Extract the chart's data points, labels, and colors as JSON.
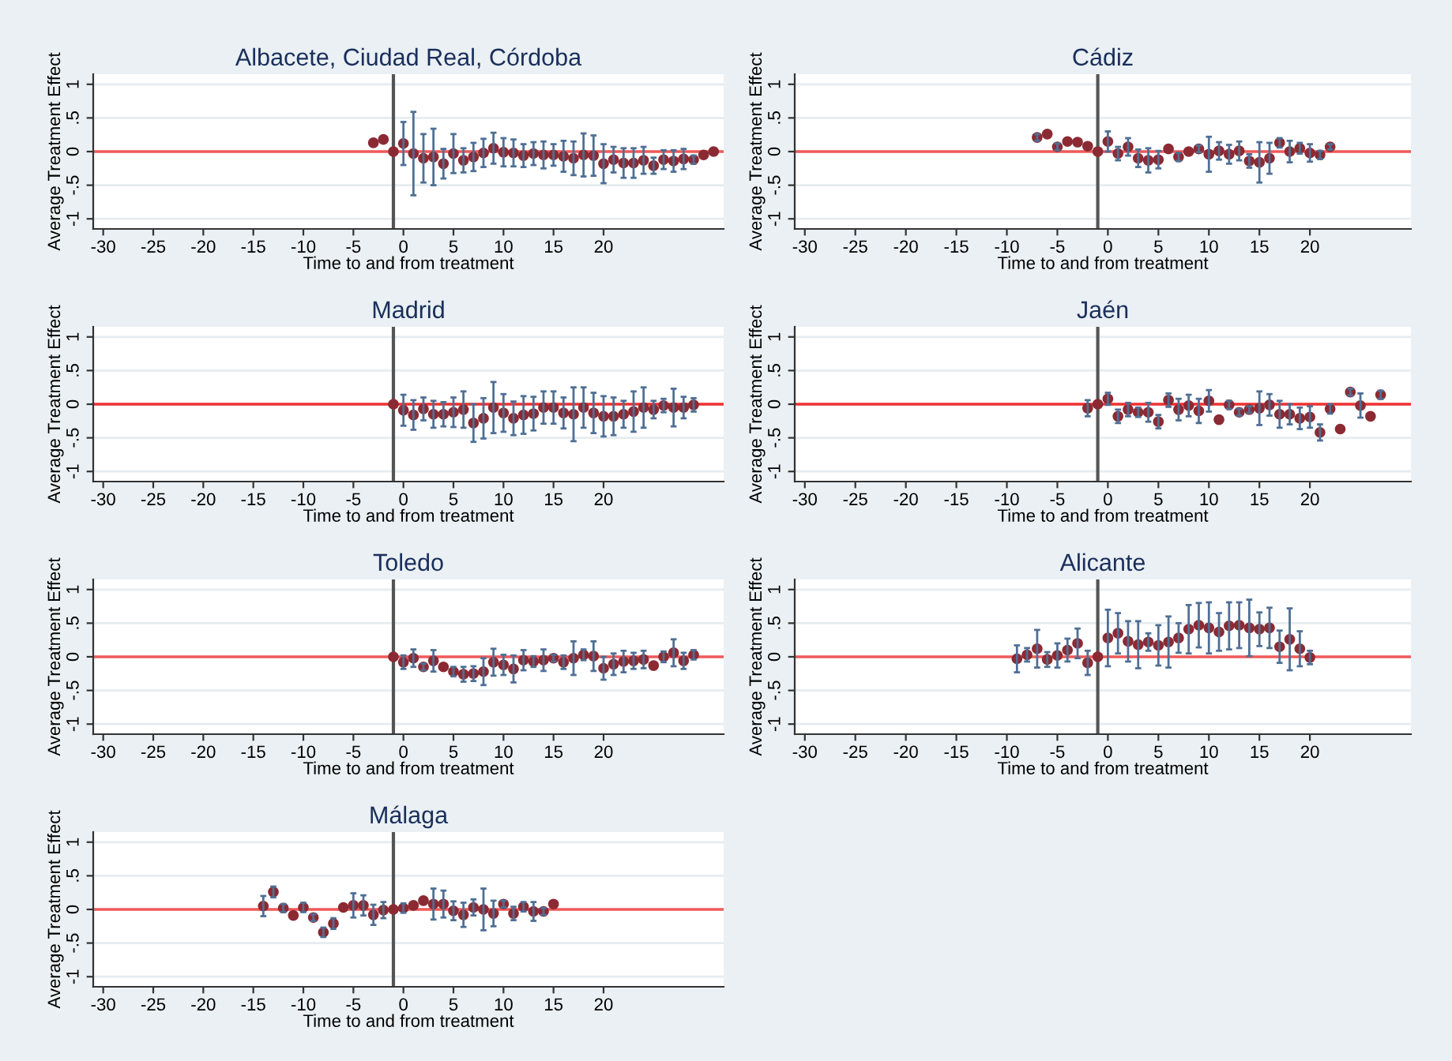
{
  "chart_data": [
    {
      "type": "scatter",
      "title": "Albacete, Ciudad Real, Córdoba",
      "xlabel": "Time to and from treatment",
      "ylabel": "Average Treatment Effect",
      "marker": "circle",
      "grid": "y",
      "color": "#8b2a33",
      "x": [
        -3,
        -2,
        -1,
        0,
        1,
        2,
        3,
        4,
        5,
        6,
        7,
        8,
        9,
        10,
        11,
        12,
        13,
        14,
        15,
        16,
        17,
        18,
        19,
        20,
        21,
        22,
        23,
        24,
        25,
        26,
        27,
        28,
        29,
        30,
        31
      ],
      "values": [
        0.13,
        0.18,
        0,
        0.12,
        -0.03,
        -0.1,
        -0.08,
        -0.18,
        -0.03,
        -0.13,
        -0.08,
        -0.02,
        0.05,
        -0.01,
        -0.02,
        -0.06,
        -0.03,
        -0.05,
        -0.05,
        -0.07,
        -0.1,
        -0.05,
        -0.06,
        -0.18,
        -0.12,
        -0.17,
        -0.17,
        -0.13,
        -0.21,
        -0.12,
        -0.14,
        -0.11,
        -0.12,
        -0.05,
        0
      ],
      "errors": [
        null,
        null,
        null,
        0.32,
        0.62,
        0.36,
        0.42,
        0.22,
        0.29,
        0.18,
        0.21,
        0.21,
        0.23,
        0.21,
        0.2,
        0.17,
        0.17,
        0.2,
        0.16,
        0.23,
        0.25,
        0.32,
        0.3,
        0.29,
        0.19,
        0.22,
        0.22,
        0.2,
        0.12,
        0.14,
        0.16,
        0.15,
        0.06,
        null,
        null
      ],
      "xlim": [
        -31,
        32
      ],
      "ylim": [
        -1.15,
        1.15
      ],
      "xticks": [
        -30,
        -25,
        -20,
        -15,
        -10,
        -5,
        0,
        5,
        10,
        15,
        20
      ],
      "yticks": [
        {
          "value": -1,
          "label": "-1"
        },
        {
          "value": -0.5,
          "label": "-.5"
        },
        0,
        {
          "value": 0.5,
          "label": ".5"
        },
        1
      ],
      "ref_lines": [
        {
          "axis": "y",
          "value": 0,
          "color": "#f05a5a"
        },
        {
          "axis": "x",
          "value": -1,
          "color": "#555555"
        }
      ]
    },
    {
      "type": "scatter",
      "title": "Cádiz",
      "xlabel": "Time to and from treatment",
      "ylabel": "Average Treatment Effect",
      "marker": "circle",
      "grid": "y",
      "color": "#8b2a33",
      "x": [
        -7,
        -6,
        -5,
        -4,
        -3,
        -2,
        -1,
        0,
        1,
        2,
        3,
        4,
        5,
        6,
        7,
        8,
        9,
        10,
        11,
        12,
        13,
        14,
        15,
        16,
        17,
        18,
        19,
        20,
        21,
        22
      ],
      "values": [
        0.21,
        0.26,
        0.07,
        0.15,
        0.14,
        0.08,
        0,
        0.15,
        -0.03,
        0.07,
        -0.1,
        -0.13,
        -0.12,
        0.04,
        -0.08,
        0,
        0.04,
        -0.04,
        0.01,
        -0.04,
        0.01,
        -0.14,
        -0.16,
        -0.1,
        0.13,
        0,
        0.05,
        -0.02,
        -0.05,
        0.07
      ],
      "errors": [
        0.05,
        null,
        0.05,
        null,
        null,
        null,
        null,
        0.15,
        0.1,
        0.13,
        0.13,
        0.18,
        0.13,
        null,
        0.06,
        null,
        0.05,
        0.26,
        0.13,
        0.14,
        0.14,
        0.1,
        0.3,
        0.23,
        0.07,
        0.16,
        0.08,
        0.13,
        0.06,
        0.04
      ],
      "xlim": [
        -31,
        30
      ],
      "ylim": [
        -1.15,
        1.15
      ],
      "xticks": [
        -30,
        -25,
        -20,
        -15,
        -10,
        -5,
        0,
        5,
        10,
        15,
        20
      ],
      "yticks": [
        {
          "value": -1,
          "label": "-1"
        },
        {
          "value": -0.5,
          "label": "-.5"
        },
        0,
        {
          "value": 0.5,
          "label": ".5"
        },
        1
      ],
      "ref_lines": [
        {
          "axis": "y",
          "value": 0,
          "color": "#f05a5a"
        },
        {
          "axis": "x",
          "value": -1,
          "color": "#555555"
        }
      ]
    },
    {
      "type": "scatter",
      "title": "Madrid",
      "xlabel": "Time to and from treatment",
      "ylabel": "Average Treatment Effect",
      "marker": "circle",
      "grid": "y",
      "color": "#8b2a33",
      "x": [
        -1,
        0,
        1,
        2,
        3,
        4,
        5,
        6,
        7,
        8,
        9,
        10,
        11,
        12,
        13,
        14,
        15,
        16,
        17,
        18,
        19,
        20,
        21,
        22,
        23,
        24,
        25,
        26,
        27,
        28,
        29
      ],
      "values": [
        0,
        -0.09,
        -0.16,
        -0.07,
        -0.15,
        -0.15,
        -0.12,
        -0.08,
        -0.28,
        -0.21,
        -0.05,
        -0.13,
        -0.21,
        -0.16,
        -0.14,
        -0.05,
        -0.05,
        -0.13,
        -0.15,
        -0.05,
        -0.13,
        -0.18,
        -0.18,
        -0.15,
        -0.11,
        -0.05,
        -0.08,
        -0.02,
        -0.05,
        -0.05,
        -0.01
      ],
      "errors": [
        null,
        0.23,
        0.22,
        0.17,
        0.2,
        0.18,
        0.22,
        0.27,
        0.28,
        0.3,
        0.38,
        0.28,
        0.25,
        0.28,
        0.25,
        0.24,
        0.24,
        0.23,
        0.4,
        0.3,
        0.3,
        0.3,
        0.28,
        0.2,
        0.3,
        0.3,
        0.13,
        0.1,
        0.28,
        0.16,
        0.1
      ],
      "xlim": [
        -31,
        32
      ],
      "ylim": [
        -1.15,
        1.15
      ],
      "xticks": [
        -30,
        -25,
        -20,
        -15,
        -10,
        -5,
        0,
        5,
        10,
        15,
        20
      ],
      "yticks": [
        {
          "value": -1,
          "label": "-1"
        },
        {
          "value": -0.5,
          "label": "-.5"
        },
        0,
        {
          "value": 0.5,
          "label": ".5"
        },
        1
      ],
      "ref_lines": [
        {
          "axis": "y",
          "value": 0,
          "color": "#f03030"
        },
        {
          "axis": "x",
          "value": -1,
          "color": "#555555"
        }
      ]
    },
    {
      "type": "scatter",
      "title": "Jaén",
      "xlabel": "Time to and from treatment",
      "ylabel": "Average Treatment Effect",
      "marker": "circle",
      "grid": "y",
      "color": "#8b2a33",
      "x": [
        -2,
        -1,
        0,
        1,
        2,
        3,
        4,
        5,
        6,
        7,
        8,
        9,
        10,
        11,
        12,
        13,
        14,
        15,
        16,
        17,
        18,
        19,
        20,
        21,
        22,
        23,
        24,
        25,
        26,
        27
      ],
      "values": [
        -0.06,
        0,
        0.08,
        -0.18,
        -0.08,
        -0.12,
        -0.12,
        -0.26,
        0.06,
        -0.08,
        -0.02,
        -0.1,
        0.05,
        -0.23,
        -0.01,
        -0.12,
        -0.08,
        -0.06,
        -0.01,
        -0.15,
        -0.15,
        -0.21,
        -0.19,
        -0.42,
        -0.07,
        -0.37,
        0.18,
        -0.02,
        -0.18,
        0.14
      ],
      "errors": [
        0.12,
        null,
        0.09,
        0.1,
        0.1,
        0.07,
        0.14,
        0.1,
        0.1,
        0.16,
        0.16,
        0.18,
        0.16,
        null,
        0.06,
        0.05,
        0.05,
        0.25,
        0.16,
        0.2,
        0.15,
        0.16,
        0.16,
        0.12,
        0.07,
        null,
        0.05,
        0.18,
        null,
        0.06
      ],
      "xlim": [
        -31,
        30
      ],
      "ylim": [
        -1.15,
        1.15
      ],
      "xticks": [
        -30,
        -25,
        -20,
        -15,
        -10,
        -5,
        0,
        5,
        10,
        15,
        20
      ],
      "yticks": [
        {
          "value": -1,
          "label": "-1"
        },
        {
          "value": -0.5,
          "label": "-.5"
        },
        0,
        {
          "value": 0.5,
          "label": ".5"
        },
        1
      ],
      "ref_lines": [
        {
          "axis": "y",
          "value": 0,
          "color": "#f03030"
        },
        {
          "axis": "x",
          "value": -1,
          "color": "#555555"
        }
      ]
    },
    {
      "type": "scatter",
      "title": "Toledo",
      "xlabel": "Time to and from treatment",
      "ylabel": "Average Treatment Effect",
      "marker": "circle",
      "grid": "y",
      "color": "#8b2a33",
      "x": [
        -1,
        0,
        1,
        2,
        3,
        4,
        5,
        6,
        7,
        8,
        9,
        10,
        11,
        12,
        13,
        14,
        15,
        16,
        17,
        18,
        19,
        20,
        21,
        22,
        23,
        24,
        25,
        26,
        27,
        28,
        29
      ],
      "values": [
        0,
        -0.08,
        -0.02,
        -0.15,
        -0.06,
        -0.15,
        -0.22,
        -0.26,
        -0.25,
        -0.22,
        -0.08,
        -0.12,
        -0.18,
        -0.05,
        -0.07,
        -0.05,
        -0.02,
        -0.08,
        -0.02,
        0.03,
        0.01,
        -0.17,
        -0.11,
        -0.07,
        -0.06,
        -0.04,
        -0.13,
        0,
        0.06,
        -0.06,
        0.03
      ],
      "errors": [
        null,
        0.1,
        0.13,
        0.05,
        0.16,
        null,
        0.07,
        0.11,
        0.11,
        0.2,
        0.2,
        0.15,
        0.2,
        0.15,
        0.08,
        0.16,
        0.05,
        0.1,
        0.25,
        0.08,
        0.22,
        0.17,
        0.16,
        0.16,
        0.12,
        0.13,
        null,
        0.08,
        0.2,
        0.12,
        0.07
      ],
      "xlim": [
        -31,
        32
      ],
      "ylim": [
        -1.15,
        1.15
      ],
      "xticks": [
        -30,
        -25,
        -20,
        -15,
        -10,
        -5,
        0,
        5,
        10,
        15,
        20
      ],
      "yticks": [
        {
          "value": -1,
          "label": "-1"
        },
        {
          "value": -0.5,
          "label": "-.5"
        },
        0,
        {
          "value": 0.5,
          "label": ".5"
        },
        1
      ],
      "ref_lines": [
        {
          "axis": "y",
          "value": 0,
          "color": "#f05a5a"
        },
        {
          "axis": "x",
          "value": -1,
          "color": "#555555"
        }
      ]
    },
    {
      "type": "scatter",
      "title": "Alicante",
      "xlabel": "Time to and from treatment",
      "ylabel": "Average Treatment Effect",
      "marker": "circle",
      "grid": "y",
      "color": "#8b2a33",
      "x": [
        -9,
        -8,
        -7,
        -6,
        -5,
        -4,
        -3,
        -2,
        -1,
        0,
        1,
        2,
        3,
        4,
        5,
        6,
        7,
        8,
        9,
        10,
        11,
        12,
        13,
        14,
        15,
        16,
        17,
        18,
        19,
        20
      ],
      "values": [
        -0.03,
        0.03,
        0.12,
        -0.04,
        0.02,
        0.1,
        0.2,
        -0.09,
        0,
        0.28,
        0.35,
        0.23,
        0.18,
        0.22,
        0.17,
        0.22,
        0.28,
        0.41,
        0.47,
        0.43,
        0.37,
        0.46,
        0.47,
        0.43,
        0.41,
        0.43,
        0.15,
        0.26,
        0.12,
        -0.01
      ],
      "errors": [
        0.2,
        0.1,
        0.28,
        0.11,
        0.18,
        0.17,
        0.22,
        0.18,
        null,
        0.42,
        0.3,
        0.3,
        0.35,
        0.13,
        0.3,
        0.38,
        0.22,
        0.36,
        0.33,
        0.38,
        0.28,
        0.35,
        0.34,
        0.42,
        0.25,
        0.3,
        0.24,
        0.46,
        0.26,
        0.1
      ],
      "xlim": [
        -31,
        30
      ],
      "ylim": [
        -1.15,
        1.15
      ],
      "xticks": [
        -30,
        -25,
        -20,
        -15,
        -10,
        -5,
        0,
        5,
        10,
        15,
        20
      ],
      "yticks": [
        {
          "value": -1,
          "label": "-1"
        },
        {
          "value": -0.5,
          "label": "-.5"
        },
        0,
        {
          "value": 0.5,
          "label": ".5"
        },
        1
      ],
      "ref_lines": [
        {
          "axis": "y",
          "value": 0,
          "color": "#f05a5a"
        },
        {
          "axis": "x",
          "value": -1,
          "color": "#555555"
        }
      ]
    },
    {
      "type": "scatter",
      "title": "Málaga",
      "xlabel": "Time to and from treatment",
      "ylabel": "Average Treatment Effect",
      "marker": "circle",
      "grid": "y",
      "color": "#8b2a33",
      "x": [
        -14,
        -13,
        -12,
        -11,
        -10,
        -9,
        -8,
        -7,
        -6,
        -5,
        -4,
        -3,
        -2,
        -1,
        0,
        1,
        2,
        3,
        4,
        5,
        6,
        7,
        8,
        9,
        10,
        11,
        12,
        13,
        14,
        15
      ],
      "values": [
        0.05,
        0.26,
        0.02,
        -0.09,
        0.03,
        -0.12,
        -0.34,
        -0.21,
        0.03,
        0.06,
        0.06,
        -0.08,
        -0.01,
        0,
        0.02,
        0.06,
        0.13,
        0.08,
        0.08,
        -0.02,
        -0.08,
        0.03,
        0,
        -0.06,
        0.08,
        -0.06,
        0.04,
        -0.03,
        -0.03,
        0.08
      ],
      "errors": [
        0.15,
        0.08,
        0.06,
        null,
        0.07,
        0.05,
        0.07,
        0.08,
        null,
        0.18,
        0.15,
        0.15,
        0.12,
        null,
        0.07,
        null,
        null,
        0.23,
        0.2,
        0.14,
        0.18,
        0.12,
        0.31,
        0.19,
        0.05,
        0.1,
        0.07,
        0.14,
        0.05,
        null
      ],
      "xlim": [
        -31,
        32
      ],
      "ylim": [
        -1.15,
        1.15
      ],
      "xticks": [
        -30,
        -25,
        -20,
        -15,
        -10,
        -5,
        0,
        5,
        10,
        15,
        20
      ],
      "yticks": [
        {
          "value": -1,
          "label": "-1"
        },
        {
          "value": -0.5,
          "label": "-.5"
        },
        0,
        {
          "value": 0.5,
          "label": ".5"
        },
        1
      ],
      "ref_lines": [
        {
          "axis": "y",
          "value": 0,
          "color": "#f05a5a"
        },
        {
          "axis": "x",
          "value": -1,
          "color": "#555555"
        }
      ]
    }
  ]
}
